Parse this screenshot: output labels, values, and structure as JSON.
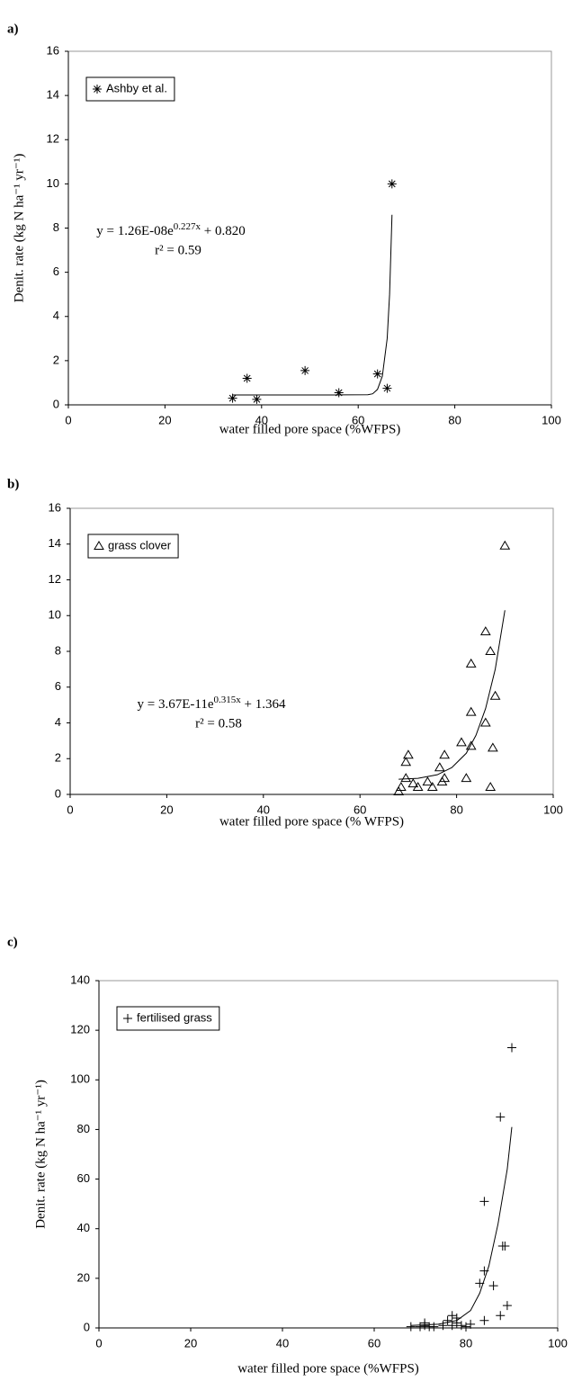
{
  "chart_data": [
    {
      "type": "scatter",
      "panel_label": "a)",
      "xlabel": "water filled pore space (%WFPS)",
      "ylabel": "Denit. rate (kg N ha⁻¹ yr⁻¹)",
      "xlim": [
        0,
        100
      ],
      "xticks": [
        0,
        20,
        40,
        60,
        80,
        100
      ],
      "ylim": [
        0,
        16
      ],
      "yticks": [
        0,
        2,
        4,
        6,
        8,
        10,
        12,
        14,
        16
      ],
      "legend": "top-left",
      "series": [
        {
          "name": "Ashby et al.",
          "marker": "asterisk",
          "color": "#000000",
          "x": [
            34,
            37,
            39,
            49,
            56,
            64,
            66,
            67
          ],
          "values": [
            0.3,
            1.2,
            0.25,
            1.55,
            0.55,
            1.4,
            0.75,
            10
          ]
        }
      ],
      "trendline": {
        "x": [
          34,
          45,
          55,
          62,
          63,
          64,
          65,
          66,
          66.5,
          67
        ],
        "values": [
          0.45,
          0.45,
          0.45,
          0.46,
          0.5,
          0.7,
          1.3,
          3,
          5,
          8.6
        ]
      },
      "equation": {
        "base": "y = 1.26E-08e",
        "exponent": "0.227x",
        "constant": " + 0.820"
      },
      "r2": "r² = 0.59"
    },
    {
      "type": "scatter",
      "panel_label": "b)",
      "xlabel": "water filled pore space (% WFPS)",
      "xlim": [
        0,
        100
      ],
      "xticks": [
        0,
        20,
        40,
        60,
        80,
        100
      ],
      "ylim": [
        0,
        16
      ],
      "yticks": [
        0,
        2,
        4,
        6,
        8,
        10,
        12,
        14,
        16
      ],
      "legend": "top-left",
      "series": [
        {
          "name": "grass clover",
          "marker": "triangle",
          "color": "#000000",
          "x": [
            68,
            68.5,
            69.5,
            70,
            69.5,
            71,
            72,
            74,
            75,
            76.5,
            77,
            77.5,
            77.5,
            81,
            82,
            83,
            83,
            83,
            86,
            86,
            87,
            87,
            87.5,
            88,
            90
          ],
          "values": [
            0.15,
            0.4,
            1.8,
            2.2,
            0.9,
            0.6,
            0.4,
            0.7,
            0.4,
            1.5,
            0.7,
            0.9,
            2.2,
            2.9,
            0.9,
            2.7,
            4.6,
            7.3,
            9.1,
            4.0,
            8.0,
            0.4,
            2.6,
            5.5,
            13.9
          ]
        }
      ],
      "trendline": {
        "x": [
          68,
          72,
          76,
          79,
          82,
          84,
          86,
          88,
          90
        ],
        "values": [
          0.85,
          0.9,
          1.1,
          1.5,
          2.3,
          3.3,
          4.8,
          7,
          10.3
        ]
      },
      "equation": {
        "base": "y = 3.67E-11e",
        "exponent": "0.315x",
        "constant": " + 1.364"
      },
      "r2": "r² = 0.58"
    },
    {
      "type": "scatter",
      "panel_label": "c)",
      "xlabel": "water filled pore space (%WFPS)",
      "ylabel": "Denit. rate (kg N ha⁻¹ yr⁻¹)",
      "xlim": [
        0,
        100
      ],
      "xticks": [
        0,
        20,
        40,
        60,
        80,
        100
      ],
      "ylim": [
        0,
        140
      ],
      "yticks": [
        0,
        20,
        40,
        60,
        80,
        100,
        120,
        140
      ],
      "legend": "top-left",
      "series": [
        {
          "name": "fertilised grass",
          "marker": "plus",
          "color": "#000000",
          "x": [
            68,
            70,
            71,
            71,
            72,
            73,
            75,
            76,
            77,
            77,
            78,
            78,
            79,
            80,
            81,
            83,
            84,
            84,
            84,
            86,
            87.5,
            87.5,
            88,
            88.5,
            89,
            90
          ],
          "values": [
            0.5,
            0.5,
            1,
            2,
            0.5,
            0.5,
            1,
            3,
            5,
            1,
            2,
            4,
            1,
            0.5,
            1.5,
            18,
            3,
            51,
            23,
            17,
            5,
            85,
            33,
            33,
            9,
            113
          ]
        }
      ],
      "trendline": {
        "x": [
          68,
          74,
          78,
          81,
          83,
          85,
          87,
          89,
          90
        ],
        "values": [
          1,
          1.5,
          3,
          7,
          14,
          25,
          42,
          64,
          81
        ]
      }
    }
  ]
}
